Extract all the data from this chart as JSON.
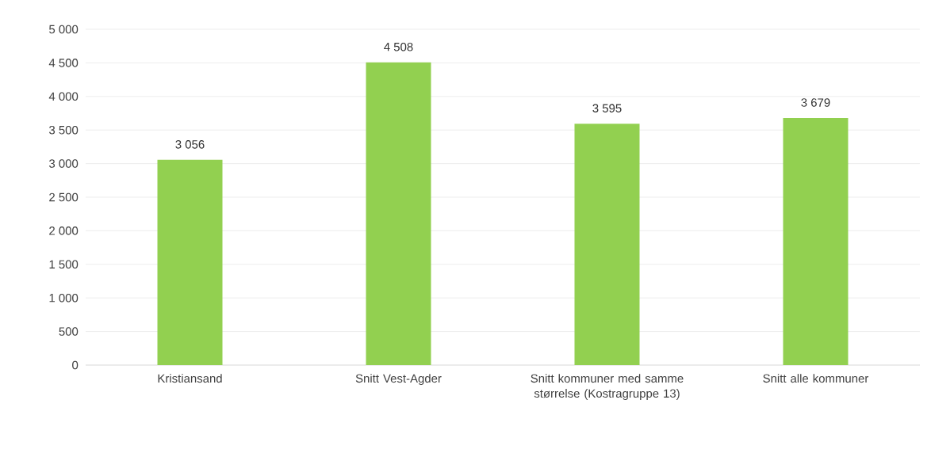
{
  "chart_data": {
    "type": "bar",
    "categories": [
      "Kristiansand",
      "Snitt Vest-Agder",
      "Snitt kommuner med samme størrelse (Kostragruppe 13)",
      "Snitt alle kommuner"
    ],
    "values": [
      3056,
      4508,
      3595,
      3679
    ],
    "value_labels": [
      "3 056",
      "4 508",
      "3 595",
      "3 679"
    ],
    "color": "#92d050",
    "ylim": [
      0,
      5000
    ],
    "yticks": [
      0,
      {
        "value": 500,
        "label": "500"
      },
      {
        "value": 1000,
        "label": "1 000"
      },
      {
        "value": 1500,
        "label": "1 500"
      },
      {
        "value": 2000,
        "label": "2 000"
      },
      {
        "value": 2500,
        "label": "2 500"
      },
      {
        "value": 3000,
        "label": "3 000"
      },
      {
        "value": 3500,
        "label": "3 500"
      },
      {
        "value": 4000,
        "label": "4 000"
      },
      {
        "value": 4500,
        "label": "4 500"
      },
      {
        "value": 5000,
        "label": "5 000"
      }
    ],
    "grid": "y"
  }
}
